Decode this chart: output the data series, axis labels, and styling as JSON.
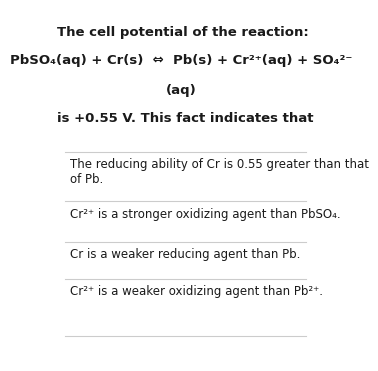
{
  "bg_color": "#ffffff",
  "title_bold": "The cell potential of the reaction:",
  "equation_line1": "PbSO₄(aq) + Cr(s)  ⇔  Pb(s) + Cr²⁺(aq) + SO₄²⁻",
  "equation_line2": "(aq)",
  "statement": "is +0.55 V. This fact indicates that",
  "options": [
    "The reducing ability of Cr is 0.55 greater than that\nof Pb.",
    "Cr²⁺ is a stronger oxidizing agent than PbSO₄.",
    "Cr is a weaker reducing agent than Pb.",
    "Cr²⁺ is a weaker oxidizing agent than Pb²⁺."
  ],
  "text_color": "#1a1a1a",
  "line_color": "#cccccc",
  "font_size_title": 9.5,
  "font_size_eq": 9.5,
  "font_size_stmt": 9.5,
  "font_size_opt": 8.5
}
